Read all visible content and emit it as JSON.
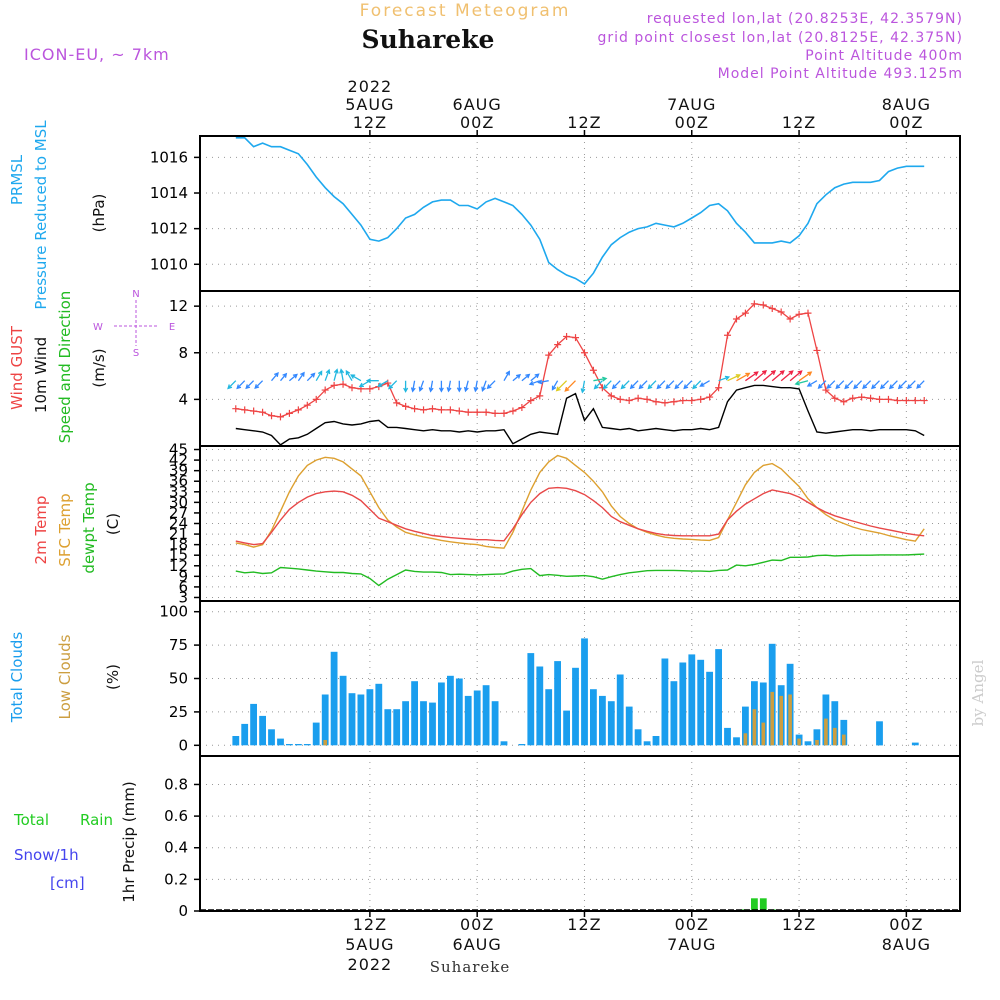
{
  "header": {
    "forecast_title": "Forecast Meteogram",
    "location": "Suhareke",
    "model": "ICON-EU, ~ 7km",
    "requested": "requested lon,lat (20.8253E, 42.3579N)",
    "grid_point": "grid point closest lon,lat (20.8125E, 42.375N)",
    "point_altitude": "Point Altitude 400m",
    "model_altitude": "Model Point Altitude 493.125m",
    "watermark": "by Angel",
    "footer_location": "Suhareke"
  },
  "time_axis": {
    "top_labels": [
      {
        "lines": [
          "2022",
          "5AUG",
          "12Z"
        ],
        "t": 15
      },
      {
        "lines": [
          "6AUG",
          "00Z"
        ],
        "t": 27
      },
      {
        "lines": [
          "12Z"
        ],
        "t": 39
      },
      {
        "lines": [
          "7AUG",
          "00Z"
        ],
        "t": 51
      },
      {
        "lines": [
          "12Z"
        ],
        "t": 63
      },
      {
        "lines": [
          "8AUG",
          "00Z"
        ],
        "t": 75
      }
    ],
    "bottom_labels": [
      {
        "lines": [
          "12Z",
          "5AUG",
          "2022"
        ],
        "t": 15
      },
      {
        "lines": [
          "00Z",
          "6AUG"
        ],
        "t": 27
      },
      {
        "lines": [
          "12Z"
        ],
        "t": 39
      },
      {
        "lines": [
          "00Z",
          "7AUG"
        ],
        "t": 51
      },
      {
        "lines": [
          "12Z"
        ],
        "t": 63
      },
      {
        "lines": [
          "00Z",
          "8AUG"
        ],
        "t": 75
      }
    ],
    "t_range": [
      -4,
      81
    ]
  },
  "panels": {
    "pressure": {
      "labels": [
        "PRMSL",
        "Pressure Reduced to MSL"
      ],
      "unit": "(hPa)",
      "ylim": [
        1008.5,
        1017.2
      ],
      "ticks": [
        "1016",
        "1014",
        "1012",
        "1010"
      ]
    },
    "wind": {
      "labels": [
        "Wind GUST",
        "10m Wind",
        "Speed and Direction"
      ],
      "unit": "(m/s)",
      "ylim": [
        0,
        13.3
      ],
      "ticks": [
        "12",
        "8",
        "4"
      ],
      "compass": {
        "n": "N",
        "s": "S",
        "e": "E",
        "w": "W"
      }
    },
    "temp": {
      "labels": [
        "2m Temp",
        "SFC Temp",
        "dewpt Temp"
      ],
      "unit": "(C)",
      "ylim": [
        2,
        46
      ],
      "ticks": [
        "45",
        "42",
        "39",
        "36",
        "33",
        "30",
        "27",
        "24",
        "21",
        "18",
        "15",
        "12",
        "9",
        "6",
        "3"
      ]
    },
    "cloud": {
      "labels": [
        "Total Clouds",
        "Low Clouds"
      ],
      "unit": "(%)",
      "ylim": [
        -8,
        108
      ],
      "ticks": [
        "100",
        "75",
        "50",
        "25",
        "0"
      ]
    },
    "precip": {
      "labels": [
        "Total",
        "Rain",
        "Snow/1h",
        "[cm]"
      ],
      "unit": "1hr Precip (mm)",
      "ylim": [
        0,
        0.98
      ],
      "ticks": [
        "0.8",
        "0.6",
        "0.4",
        "0.2",
        "0"
      ]
    }
  },
  "colors": {
    "pressure": "#1ea8ee",
    "gust": "#ee4444",
    "wind": "#000000",
    "t2m": "#e84848",
    "tsfc": "#dda030",
    "dewpt": "#22bb22",
    "cloud_total": "#1a9eee",
    "cloud_low": "#cc9e40",
    "rain": "#22cc22",
    "title_orange": "#f0c070",
    "purple": "#bb55dd",
    "snow": "#4444ee"
  },
  "chart_data": {
    "type": "line",
    "x_unit": "hours from 2022-08-05 00Z",
    "x": [
      0,
      1,
      2,
      3,
      4,
      5,
      6,
      7,
      8,
      9,
      10,
      11,
      12,
      13,
      14,
      15,
      16,
      17,
      18,
      19,
      20,
      21,
      22,
      23,
      24,
      25,
      26,
      27,
      28,
      29,
      30,
      31,
      32,
      33,
      34,
      35,
      36,
      37,
      38,
      39,
      40,
      41,
      42,
      43,
      44,
      45,
      46,
      47,
      48,
      49,
      50,
      51,
      52,
      53,
      54,
      55,
      56,
      57,
      58,
      59,
      60,
      61,
      62,
      63,
      64,
      65,
      66,
      67,
      68,
      69,
      70,
      71,
      72,
      73,
      74,
      75,
      76,
      77
    ],
    "series": [
      {
        "name": "PRMSL (hPa)",
        "values": [
          1017.1,
          1017.1,
          1016.6,
          1016.8,
          1016.6,
          1016.6,
          1016.4,
          1016.2,
          1015.6,
          1014.9,
          1014.3,
          1013.8,
          1013.4,
          1012.8,
          1012.2,
          1011.4,
          1011.3,
          1011.5,
          1012.0,
          1012.6,
          1012.8,
          1013.2,
          1013.5,
          1013.6,
          1013.6,
          1013.3,
          1013.3,
          1013.1,
          1013.5,
          1013.7,
          1013.5,
          1013.3,
          1012.8,
          1012.2,
          1011.4,
          1010.1,
          1009.7,
          1009.4,
          1009.2,
          1008.9,
          1009.5,
          1010.4,
          1011.1,
          1011.5,
          1011.8,
          1012.0,
          1012.1,
          1012.3,
          1012.2,
          1012.1,
          1012.3,
          1012.6,
          1012.9,
          1013.3,
          1013.4,
          1013.0,
          1012.3,
          1011.8,
          1011.2,
          1011.2,
          1011.2,
          1011.3,
          1011.2,
          1011.6,
          1012.3,
          1013.4,
          1013.9,
          1014.3,
          1014.5,
          1014.6,
          1014.6,
          1014.6,
          1014.7,
          1015.2,
          1015.4,
          1015.5,
          1015.5,
          1015.5
        ]
      },
      {
        "name": "Wind GUST (m/s)",
        "values": [
          3.2,
          3.1,
          3.0,
          2.9,
          2.6,
          2.5,
          2.8,
          3.1,
          3.5,
          4.0,
          4.8,
          5.2,
          5.3,
          5.0,
          4.9,
          4.9,
          5.1,
          5.4,
          3.7,
          3.4,
          3.2,
          3.1,
          3.2,
          3.1,
          3.1,
          3.0,
          2.9,
          2.9,
          2.9,
          2.8,
          2.8,
          3.0,
          3.3,
          3.9,
          4.3,
          7.8,
          8.7,
          9.4,
          9.3,
          8.0,
          6.5,
          5.0,
          4.3,
          4.0,
          3.9,
          4.1,
          4.0,
          3.8,
          3.7,
          3.8,
          3.9,
          3.9,
          4.0,
          4.2,
          5.0,
          9.5,
          10.9,
          11.4,
          12.2,
          12.1,
          11.8,
          11.5,
          10.9,
          11.3,
          11.4,
          8.2,
          4.8,
          4.1,
          3.8,
          4.1,
          4.2,
          4.1,
          4.0,
          4.0,
          3.9,
          3.9,
          3.9,
          3.9
        ]
      },
      {
        "name": "10m Wind (m/s)",
        "values": [
          1.5,
          1.4,
          1.3,
          1.2,
          0.9,
          0.1,
          0.6,
          0.7,
          1.0,
          1.5,
          2.0,
          2.1,
          1.9,
          1.8,
          1.9,
          2.1,
          2.2,
          1.6,
          1.6,
          1.5,
          1.4,
          1.3,
          1.4,
          1.3,
          1.3,
          1.2,
          1.3,
          1.2,
          1.3,
          1.3,
          1.4,
          0.2,
          0.6,
          1.0,
          1.2,
          1.1,
          1.0,
          4.1,
          4.5,
          2.2,
          3.2,
          1.6,
          1.5,
          1.4,
          1.5,
          1.3,
          1.4,
          1.5,
          1.4,
          1.3,
          1.4,
          1.4,
          1.5,
          1.4,
          1.6,
          3.8,
          4.8,
          5.0,
          5.2,
          5.2,
          5.1,
          5.0,
          5.0,
          4.9,
          3.0,
          1.2,
          1.1,
          1.2,
          1.3,
          1.4,
          1.4,
          1.3,
          1.4,
          1.4,
          1.4,
          1.4,
          1.3,
          0.9
        ]
      },
      {
        "name": "2m Temp (C)",
        "values": [
          19.0,
          18.5,
          18.0,
          18.3,
          21.5,
          25.0,
          28.0,
          30.0,
          31.5,
          32.5,
          33.0,
          33.2,
          33.0,
          32.0,
          30.5,
          28.0,
          25.5,
          24.5,
          23.5,
          22.5,
          21.8,
          21.2,
          20.6,
          20.3,
          20.0,
          19.8,
          19.6,
          19.4,
          19.4,
          19.2,
          19.1,
          22.5,
          26.5,
          30.0,
          32.5,
          34.0,
          34.2,
          34.0,
          33.3,
          32.2,
          30.5,
          28.5,
          26.0,
          24.5,
          23.5,
          22.5,
          21.8,
          21.2,
          20.8,
          20.6,
          20.5,
          20.5,
          20.5,
          20.5,
          21.0,
          25.0,
          27.5,
          29.5,
          31.0,
          32.5,
          33.5,
          33.0,
          32.5,
          31.5,
          30.0,
          28.5,
          27.2,
          26.2,
          25.4,
          24.7,
          24.0,
          23.3,
          22.7,
          22.2,
          21.7,
          21.2,
          20.8,
          20.5
        ]
      },
      {
        "name": "SFC Temp (C)",
        "values": [
          18.5,
          18.0,
          17.3,
          18.0,
          22.0,
          27.5,
          33.0,
          37.5,
          40.5,
          42.0,
          42.8,
          42.5,
          41.5,
          39.5,
          37.5,
          33.0,
          28.5,
          25.0,
          23.0,
          21.5,
          20.8,
          20.2,
          19.7,
          19.2,
          18.8,
          18.5,
          18.2,
          18.0,
          17.5,
          17.2,
          17.0,
          21.5,
          27.5,
          33.5,
          38.5,
          41.5,
          43.3,
          42.5,
          40.5,
          38.5,
          36.0,
          33.0,
          29.0,
          26.0,
          24.0,
          22.5,
          21.5,
          20.7,
          20.1,
          19.8,
          19.6,
          19.5,
          19.3,
          19.2,
          20.0,
          25.0,
          30.0,
          35.0,
          38.5,
          40.5,
          41.0,
          39.5,
          37.0,
          34.5,
          31.0,
          28.5,
          26.5,
          25.0,
          24.0,
          23.0,
          22.3,
          21.8,
          21.3,
          20.6,
          20.0,
          19.4,
          19.0,
          22.5
        ]
      },
      {
        "name": "Dewpt Temp (C)",
        "values": [
          10.5,
          10.0,
          10.2,
          9.8,
          10.0,
          11.5,
          11.3,
          11.1,
          10.8,
          10.5,
          10.3,
          10.1,
          10.1,
          9.8,
          9.7,
          8.4,
          6.4,
          8.2,
          9.5,
          10.8,
          10.4,
          10.2,
          10.2,
          10.1,
          9.5,
          9.6,
          9.5,
          9.4,
          9.5,
          9.6,
          9.7,
          10.5,
          11.0,
          11.2,
          9.2,
          9.5,
          9.3,
          9.0,
          9.1,
          9.2,
          8.9,
          8.2,
          8.9,
          9.5,
          10.0,
          10.3,
          10.6,
          10.7,
          10.7,
          10.7,
          10.6,
          10.5,
          10.5,
          10.4,
          10.7,
          10.8,
          12.2,
          12.0,
          12.4,
          13.0,
          13.6,
          13.5,
          14.4,
          14.4,
          14.5,
          14.9,
          15.0,
          14.8,
          14.9,
          15.0,
          15.0,
          15.0,
          15.1,
          15.1,
          15.1,
          15.1,
          15.2,
          15.3
        ]
      },
      {
        "name": "Total Clouds (%)",
        "values": [
          7,
          16,
          31,
          22,
          12,
          5,
          1,
          1,
          1,
          17,
          38,
          70,
          52,
          39,
          38,
          42,
          46,
          27,
          27,
          33,
          48,
          33,
          32,
          47,
          52,
          50,
          37,
          41,
          45,
          33,
          3,
          0,
          1,
          69,
          59,
          42,
          63,
          26,
          58,
          80,
          42,
          37,
          33,
          53,
          29,
          12,
          3,
          7,
          65,
          48,
          62,
          68,
          64,
          55,
          72,
          13,
          6,
          29,
          48,
          47,
          76,
          45,
          61,
          8,
          3,
          12,
          38,
          33,
          19,
          0,
          0,
          0,
          18,
          0,
          0,
          0,
          2,
          0
        ]
      },
      {
        "name": "Low Clouds (%)",
        "values": [
          0,
          0,
          0,
          0,
          0,
          0,
          0,
          0,
          0,
          0,
          4,
          0,
          0,
          0,
          0,
          0,
          0,
          0,
          0,
          0,
          0,
          0,
          0,
          0,
          0,
          0,
          0,
          0,
          0,
          0,
          0,
          0,
          0,
          0,
          0,
          0,
          0,
          0,
          0,
          0,
          0,
          0,
          0,
          0,
          0,
          0,
          0,
          0,
          0,
          0,
          0,
          0,
          0,
          0,
          0,
          0,
          0,
          9,
          27,
          17,
          40,
          37,
          38,
          5,
          0,
          4,
          20,
          13,
          8,
          0,
          0,
          0,
          0,
          0,
          0,
          0,
          0,
          0
        ]
      },
      {
        "name": "1hr Precip (mm)",
        "values": [
          0,
          0,
          0,
          0,
          0,
          0,
          0,
          0,
          0,
          0,
          0,
          0,
          0,
          0,
          0,
          0,
          0,
          0,
          0,
          0,
          0,
          0,
          0,
          0,
          0,
          0,
          0,
          0,
          0,
          0,
          0,
          0,
          0,
          0,
          0,
          0,
          0,
          0,
          0,
          0,
          0,
          0,
          0,
          0,
          0,
          0,
          0,
          0,
          0,
          0,
          0,
          0,
          0,
          0,
          0,
          0,
          0,
          0.01,
          0.08,
          0.08,
          0.01,
          0,
          0,
          0,
          0,
          0,
          0,
          0,
          0,
          0,
          0,
          0,
          0,
          0,
          0,
          0,
          0,
          0
        ]
      }
    ],
    "wind_dir_from_deg": [
      45,
      45,
      45,
      45,
      220,
      220,
      230,
      215,
      225,
      210,
      200,
      195,
      170,
      150,
      120,
      60,
      90,
      60,
      45,
      0,
      10,
      20,
      10,
      0,
      10,
      0,
      15,
      10,
      20,
      45,
      210,
      230,
      230,
      230,
      70,
      80,
      30,
      45,
      45,
      10,
      260,
      45,
      45,
      45,
      45,
      45,
      45,
      45,
      45,
      45,
      45,
      45,
      45,
      60,
      250,
      245,
      240,
      235,
      230,
      230,
      230,
      230,
      230,
      235,
      75,
      60,
      45,
      45,
      45,
      45,
      45,
      45,
      45,
      45,
      45,
      45,
      45,
      45
    ]
  }
}
